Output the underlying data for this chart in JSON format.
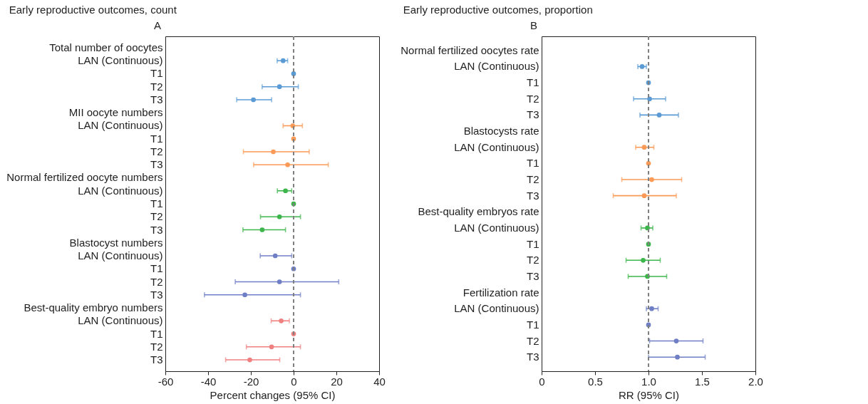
{
  "chart_data": [
    {
      "type": "scatter",
      "orientation": "horizontal",
      "title": "Early reproductive outcomes, count",
      "annotations": [
        "A"
      ],
      "xlabel": "Percent changes (95% CI)",
      "xlim": [
        -60,
        40
      ],
      "xticks": [
        -60,
        -40,
        -20,
        0,
        20,
        40
      ],
      "grid": false,
      "marker": "circle",
      "categories": [
        "Total number of oocytes",
        "LAN (Continuous)",
        "T1",
        "T2",
        "T3",
        "MII oocyte numbers",
        "LAN (Continuous)",
        "T1",
        "T2",
        "T3",
        "Normal fertilized oocyte numbers",
        "LAN (Continuous)",
        "T1",
        "T2",
        "T3",
        "Blastocyst numbers",
        "LAN (Continuous)",
        "T1",
        "T2",
        "T3",
        "Best-quality embryo numbers",
        "LAN (Continuous)",
        "T1",
        "T2",
        "T3"
      ],
      "ref_lines": [
        {
          "axis": "x",
          "value": 0,
          "color": "#7f7f7f",
          "line_style": "dashed"
        }
      ],
      "series": [
        {
          "color": "#5b9bd5",
          "values": [
            null,
            -4.9,
            0,
            -6.6,
            -18.8,
            null,
            null,
            null,
            null,
            null,
            null,
            null,
            null,
            null,
            null,
            null,
            null,
            null,
            null,
            null,
            null,
            null,
            null,
            null,
            null
          ],
          "errors": [
            null,
            [
              -7.7,
              -2.8
            ],
            null,
            [
              -14.7,
              2.2
            ],
            [
              -26.6,
              -10.3
            ],
            null,
            null,
            null,
            null,
            null,
            null,
            null,
            null,
            null,
            null,
            null,
            null,
            null,
            null,
            null,
            null,
            null,
            null,
            null,
            null
          ]
        },
        {
          "color": "#fb9a56",
          "values": [
            null,
            null,
            null,
            null,
            null,
            null,
            -0.4,
            0,
            -9.5,
            -2.8,
            null,
            null,
            null,
            null,
            null,
            null,
            null,
            null,
            null,
            null,
            null,
            null,
            null,
            null,
            null
          ],
          "errors": [
            null,
            null,
            null,
            null,
            null,
            null,
            [
              -4.9,
              4.1
            ],
            null,
            [
              -23.5,
              7.3
            ],
            [
              -18.7,
              16.2
            ],
            null,
            null,
            null,
            null,
            null,
            null,
            null,
            null,
            null,
            null,
            null,
            null,
            null,
            null,
            null
          ]
        },
        {
          "color": "#3cb64a",
          "values": [
            null,
            null,
            null,
            null,
            null,
            null,
            null,
            null,
            null,
            null,
            null,
            -3.8,
            0,
            -6.6,
            -14.7,
            null,
            null,
            null,
            null,
            null,
            null,
            null,
            null,
            null,
            null
          ],
          "errors": [
            null,
            null,
            null,
            null,
            null,
            null,
            null,
            null,
            null,
            null,
            null,
            [
              -7.6,
              -0.9
            ],
            null,
            [
              -15.5,
              3.2
            ],
            [
              -23.7,
              -3.8
            ],
            null,
            null,
            null,
            null,
            null,
            null,
            null,
            null,
            null,
            null
          ]
        },
        {
          "color": "#6f7fc6",
          "values": [
            null,
            null,
            null,
            null,
            null,
            null,
            null,
            null,
            null,
            null,
            null,
            null,
            null,
            null,
            null,
            null,
            -8.6,
            0,
            -6.6,
            -22.8,
            null,
            null,
            null,
            null,
            null
          ],
          "errors": [
            null,
            null,
            null,
            null,
            null,
            null,
            null,
            null,
            null,
            null,
            null,
            null,
            null,
            null,
            null,
            null,
            [
              -15.6,
              -0.9
            ],
            null,
            [
              -27.3,
              21.1
            ],
            [
              -41.7,
              3.2
            ],
            null,
            null,
            null,
            null,
            null
          ]
        },
        {
          "color": "#f08080",
          "values": [
            null,
            null,
            null,
            null,
            null,
            null,
            null,
            null,
            null,
            null,
            null,
            null,
            null,
            null,
            null,
            null,
            null,
            null,
            null,
            null,
            null,
            -5.8,
            0,
            -10.3,
            -20.5
          ],
          "errors": [
            null,
            null,
            null,
            null,
            null,
            null,
            null,
            null,
            null,
            null,
            null,
            null,
            null,
            null,
            null,
            null,
            null,
            null,
            null,
            null,
            null,
            [
              -10.5,
              -2.0
            ],
            null,
            [
              -22.1,
              3.2
            ],
            [
              -31.8,
              -6.5
            ]
          ]
        }
      ]
    },
    {
      "type": "scatter",
      "orientation": "horizontal",
      "title": "Early reproductive outcomes, proportion",
      "annotations": [
        "B"
      ],
      "xlabel": "RR (95% CI)",
      "xlim": [
        0,
        2
      ],
      "xticks": [
        0,
        {
          "value": 0.5,
          "label": "0.5"
        },
        {
          "value": 1,
          "label": "1.0"
        },
        {
          "value": 1.5,
          "label": "1.5"
        },
        {
          "value": 2,
          "label": "2.0"
        }
      ],
      "grid": false,
      "marker": "circle",
      "categories": [
        "Normal fertilized oocytes rate",
        "LAN (Continuous)",
        "T1",
        "T2",
        "T3",
        "Blastocysts rate",
        "LAN (Continuous)",
        "T1",
        "T2",
        "T3",
        "Best-quality embryos rate",
        "LAN (Continuous)",
        "T1",
        "T2",
        "T3",
        "Fertilization rate",
        "LAN (Continuous)",
        "T1",
        "T2",
        "T3"
      ],
      "ref_lines": [
        {
          "axis": "x",
          "value": 1,
          "color": "#7f7f7f",
          "line_style": "dashed"
        }
      ],
      "series": [
        {
          "color": "#5b9bd5",
          "values": [
            null,
            0.94,
            1,
            1.01,
            1.1,
            null,
            null,
            null,
            null,
            null,
            null,
            null,
            null,
            null,
            null,
            null,
            null,
            null,
            null,
            null
          ],
          "errors": [
            null,
            [
              0.9,
              0.98
            ],
            null,
            [
              0.86,
              1.16
            ],
            [
              0.92,
              1.28
            ],
            null,
            null,
            null,
            null,
            null,
            null,
            null,
            null,
            null,
            null,
            null,
            null,
            null,
            null,
            null
          ]
        },
        {
          "color": "#fb9a56",
          "values": [
            null,
            null,
            null,
            null,
            null,
            null,
            0.96,
            1,
            1.03,
            0.96,
            null,
            null,
            null,
            null,
            null,
            null,
            null,
            null,
            null,
            null
          ],
          "errors": [
            null,
            null,
            null,
            null,
            null,
            null,
            [
              0.88,
              1.05
            ],
            null,
            [
              0.75,
              1.31
            ],
            [
              0.67,
              1.26
            ],
            null,
            null,
            null,
            null,
            null,
            null,
            null,
            null,
            null,
            null
          ]
        },
        {
          "color": "#3cb64a",
          "values": [
            null,
            null,
            null,
            null,
            null,
            null,
            null,
            null,
            null,
            null,
            null,
            0.99,
            1,
            0.95,
            0.99,
            null,
            null,
            null,
            null,
            null
          ],
          "errors": [
            null,
            null,
            null,
            null,
            null,
            null,
            null,
            null,
            null,
            null,
            null,
            [
              0.93,
              1.04
            ],
            null,
            [
              0.79,
              1.11
            ],
            [
              0.81,
              1.17
            ],
            null,
            null,
            null,
            null,
            null
          ]
        },
        {
          "color": "#6f7fc6",
          "values": [
            null,
            null,
            null,
            null,
            null,
            null,
            null,
            null,
            null,
            null,
            null,
            null,
            null,
            null,
            null,
            null,
            1.03,
            1,
            1.26,
            1.27
          ],
          "errors": [
            null,
            null,
            null,
            null,
            null,
            null,
            null,
            null,
            null,
            null,
            null,
            null,
            null,
            null,
            null,
            null,
            [
              0.98,
              1.09
            ],
            null,
            [
              1.01,
              1.51
            ],
            [
              1.0,
              1.53
            ]
          ]
        }
      ]
    }
  ]
}
